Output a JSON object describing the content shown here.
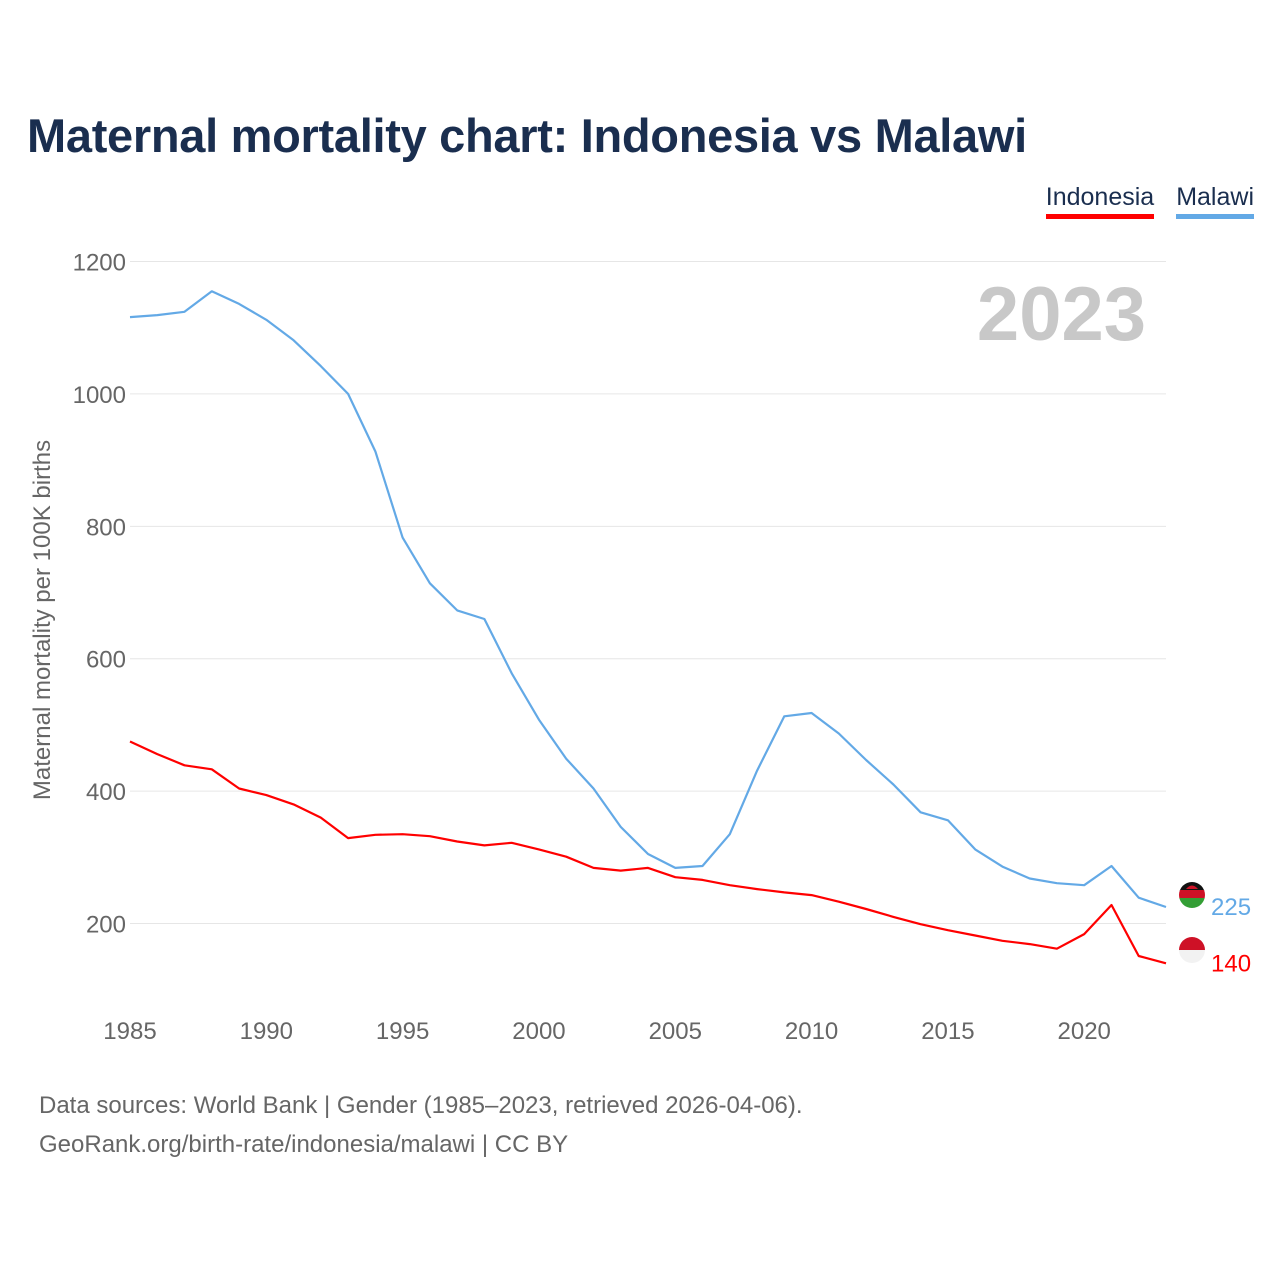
{
  "title": "Maternal mortality chart: Indonesia vs Malawi",
  "legend": [
    {
      "name": "Indonesia",
      "color": "#ff0000"
    },
    {
      "name": "Malawi",
      "color": "#63a9e6"
    }
  ],
  "year_watermark": "2023",
  "footer": {
    "line1": "Data sources: World Bank | Gender (1985–2023, retrieved 2026-04-06).",
    "line2": "GeoRank.org/birth-rate/indonesia/malawi | CC BY"
  },
  "chart_data": {
    "type": "line",
    "title": "Maternal mortality chart: Indonesia vs Malawi",
    "xlabel": "",
    "ylabel": "Maternal mortality per 100K births",
    "xlim": [
      1985,
      2023
    ],
    "ylim": [
      80,
      1200
    ],
    "yticks": [
      200,
      400,
      600,
      800,
      1000,
      1200
    ],
    "xticks": [
      1985,
      1990,
      1995,
      2000,
      2005,
      2010,
      2015,
      2020
    ],
    "grid": true,
    "x": [
      1985,
      1986,
      1987,
      1988,
      1989,
      1990,
      1991,
      1992,
      1993,
      1994,
      1995,
      1996,
      1997,
      1998,
      1999,
      2000,
      2001,
      2002,
      2003,
      2004,
      2005,
      2006,
      2007,
      2008,
      2009,
      2010,
      2011,
      2012,
      2013,
      2014,
      2015,
      2016,
      2017,
      2018,
      2019,
      2020,
      2021,
      2022,
      2023
    ],
    "series": [
      {
        "name": "Malawi",
        "color": "#63a9e6",
        "end_label": "225",
        "flag": "malawi",
        "values": [
          1116,
          1119,
          1124,
          1155,
          1136,
          1112,
          1081,
          1042,
          1000,
          913,
          783,
          714,
          673,
          660,
          578,
          508,
          449,
          404,
          346,
          305,
          284,
          287,
          335,
          431,
          513,
          518,
          487,
          447,
          410,
          368,
          356,
          312,
          286,
          268,
          261,
          258,
          287,
          239,
          225
        ]
      },
      {
        "name": "Indonesia",
        "color": "#ff0000",
        "end_label": "140",
        "flag": "indonesia",
        "values": [
          475,
          456,
          439,
          433,
          404,
          394,
          380,
          360,
          329,
          334,
          335,
          332,
          324,
          318,
          322,
          312,
          301,
          284,
          280,
          284,
          270,
          266,
          258,
          252,
          247,
          243,
          233,
          222,
          210,
          199,
          190,
          182,
          174,
          169,
          162,
          184,
          228,
          151,
          140
        ]
      }
    ]
  }
}
